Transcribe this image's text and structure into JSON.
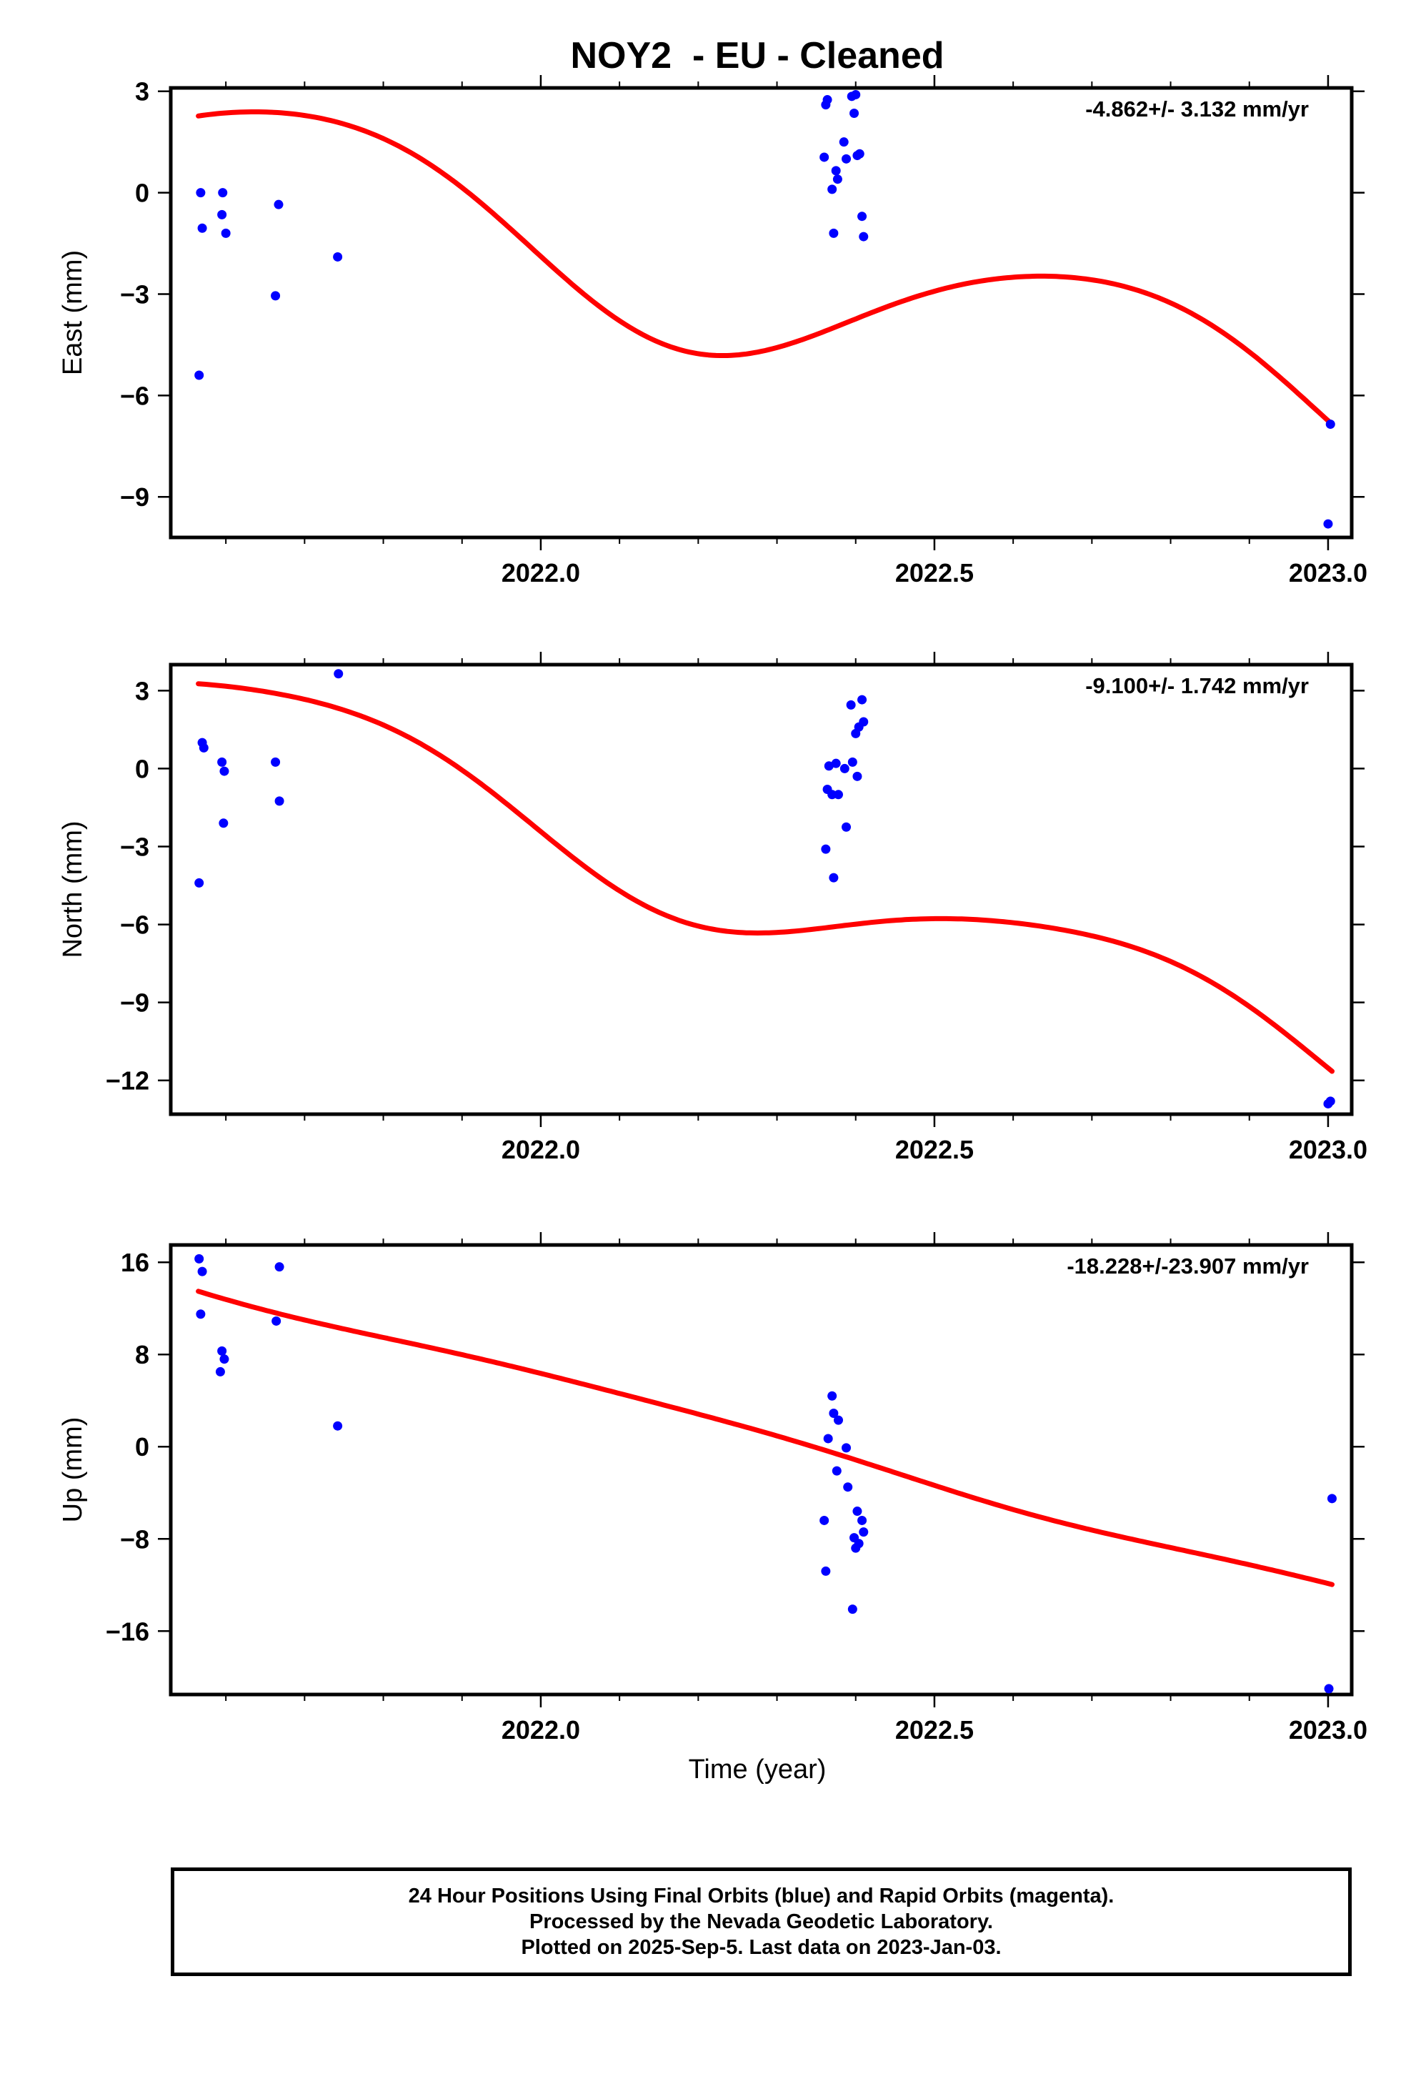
{
  "title": "NOY2  - EU - Cleaned",
  "xlabel": "Time (year)",
  "colors": {
    "final": "#0000ff",
    "model": "#ff0000"
  },
  "footer": {
    "line1": "24 Hour Positions Using Final Orbits (blue) and Rapid Orbits (magenta).",
    "line2": "Processed by the Nevada Geodetic Laboratory.",
    "line3": "Plotted on 2025-Sep-5. Last data on 2023-Jan-03."
  },
  "chart_data": [
    {
      "type": "scatter",
      "ylabel": "East (mm)",
      "rate": "-4.862+/- 3.132 mm/yr",
      "xlim": [
        2021.53,
        2023.03
      ],
      "ylim": [
        -10.2,
        3.1
      ],
      "xticks": [
        "2022.0",
        "2022.5",
        "2023.0"
      ],
      "yticks": [
        3,
        0,
        -3,
        -6,
        -9
      ],
      "points": [
        [
          2021.568,
          0.0
        ],
        [
          2021.57,
          -1.05
        ],
        [
          2021.566,
          -5.4
        ],
        [
          2021.596,
          0.0
        ],
        [
          2021.595,
          -0.65
        ],
        [
          2021.6,
          -1.2
        ],
        [
          2021.667,
          -0.35
        ],
        [
          2021.663,
          -3.05
        ],
        [
          2021.742,
          -1.9
        ],
        [
          2022.362,
          2.6
        ],
        [
          2022.364,
          2.75
        ],
        [
          2022.36,
          1.05
        ],
        [
          2022.37,
          0.1
        ],
        [
          2022.372,
          -1.2
        ],
        [
          2022.375,
          0.65
        ],
        [
          2022.377,
          0.4
        ],
        [
          2022.385,
          1.5
        ],
        [
          2022.388,
          1.0
        ],
        [
          2022.395,
          2.85
        ],
        [
          2022.398,
          2.35
        ],
        [
          2022.4,
          2.9
        ],
        [
          2022.402,
          1.1
        ],
        [
          2022.405,
          1.15
        ],
        [
          2022.408,
          -0.7
        ],
        [
          2022.41,
          -1.3
        ],
        [
          2023.003,
          -6.85
        ],
        [
          2023.0,
          -9.8
        ]
      ],
      "model": {
        "start": 2021.565,
        "end": 2023.005,
        "coef_intercept": -2.5,
        "coef_slope": -4.862,
        "t0": 2022.25,
        "sin1": 0.7,
        "cos1": -2.2,
        "sin2": 0.2,
        "cos2": -0.1
      }
    },
    {
      "type": "scatter",
      "ylabel": "North (mm)",
      "rate": "-9.100+/- 1.742 mm/yr",
      "xlim": [
        2021.53,
        2023.03
      ],
      "ylim": [
        -13.3,
        4.0
      ],
      "xticks": [
        "2022.0",
        "2022.5",
        "2023.0"
      ],
      "yticks": [
        3,
        0,
        -3,
        -6,
        -9,
        -12
      ],
      "points": [
        [
          2021.57,
          1.0
        ],
        [
          2021.572,
          0.8
        ],
        [
          2021.566,
          -4.4
        ],
        [
          2021.595,
          0.25
        ],
        [
          2021.598,
          -0.1
        ],
        [
          2021.597,
          -2.1
        ],
        [
          2021.663,
          0.25
        ],
        [
          2021.668,
          -1.25
        ],
        [
          2021.743,
          3.65
        ],
        [
          2022.362,
          -3.1
        ],
        [
          2022.364,
          -0.8
        ],
        [
          2022.366,
          0.1
        ],
        [
          2022.37,
          -1.0
        ],
        [
          2022.372,
          -4.2
        ],
        [
          2022.375,
          0.2
        ],
        [
          2022.378,
          -1.0
        ],
        [
          2022.386,
          0.0
        ],
        [
          2022.388,
          -2.25
        ],
        [
          2022.394,
          2.45
        ],
        [
          2022.396,
          0.25
        ],
        [
          2022.4,
          1.35
        ],
        [
          2022.402,
          -0.3
        ],
        [
          2022.404,
          1.6
        ],
        [
          2022.408,
          2.65
        ],
        [
          2022.41,
          1.8
        ],
        [
          2023.003,
          -12.8
        ],
        [
          2023.0,
          -12.9
        ]
      ],
      "model": {
        "start": 2021.565,
        "end": 2023.005,
        "coef_intercept": -4.2,
        "coef_slope": -9.1,
        "t0": 2022.25,
        "sin1": 0.6,
        "cos1": -2.0,
        "sin2": 0.25,
        "cos2": -0.1
      }
    },
    {
      "type": "scatter",
      "ylabel": "Up (mm)",
      "rate": "-18.228+/-23.907 mm/yr",
      "xlim": [
        2021.53,
        2023.03
      ],
      "ylim": [
        -21.5,
        17.5
      ],
      "xticks": [
        "2022.0",
        "2022.5",
        "2023.0"
      ],
      "yticks": [
        16,
        8,
        0,
        -8,
        -16
      ],
      "points": [
        [
          2021.566,
          16.3
        ],
        [
          2021.57,
          15.2
        ],
        [
          2021.568,
          11.5
        ],
        [
          2021.595,
          8.3
        ],
        [
          2021.598,
          7.6
        ],
        [
          2021.593,
          6.5
        ],
        [
          2021.668,
          15.6
        ],
        [
          2021.664,
          10.9
        ],
        [
          2021.742,
          1.8
        ],
        [
          2022.36,
          -6.4
        ],
        [
          2022.362,
          -10.8
        ],
        [
          2022.365,
          0.7
        ],
        [
          2022.37,
          4.4
        ],
        [
          2022.372,
          2.9
        ],
        [
          2022.376,
          -2.1
        ],
        [
          2022.378,
          2.3
        ],
        [
          2022.388,
          -0.1
        ],
        [
          2022.39,
          -3.5
        ],
        [
          2022.396,
          -14.1
        ],
        [
          2022.398,
          -7.9
        ],
        [
          2022.402,
          -5.6
        ],
        [
          2022.4,
          -8.8
        ],
        [
          2022.404,
          -8.4
        ],
        [
          2022.408,
          -6.4
        ],
        [
          2022.41,
          -7.4
        ],
        [
          2023.005,
          -4.5
        ],
        [
          2023.001,
          -21.0
        ]
      ],
      "model": {
        "start": 2021.565,
        "end": 2023.005,
        "coef_intercept": 1.5,
        "coef_slope": -18.228,
        "t0": 2022.25,
        "sin1": -0.3,
        "cos1": 0.4,
        "sin2": 0.1,
        "cos2": 0.0
      }
    }
  ]
}
